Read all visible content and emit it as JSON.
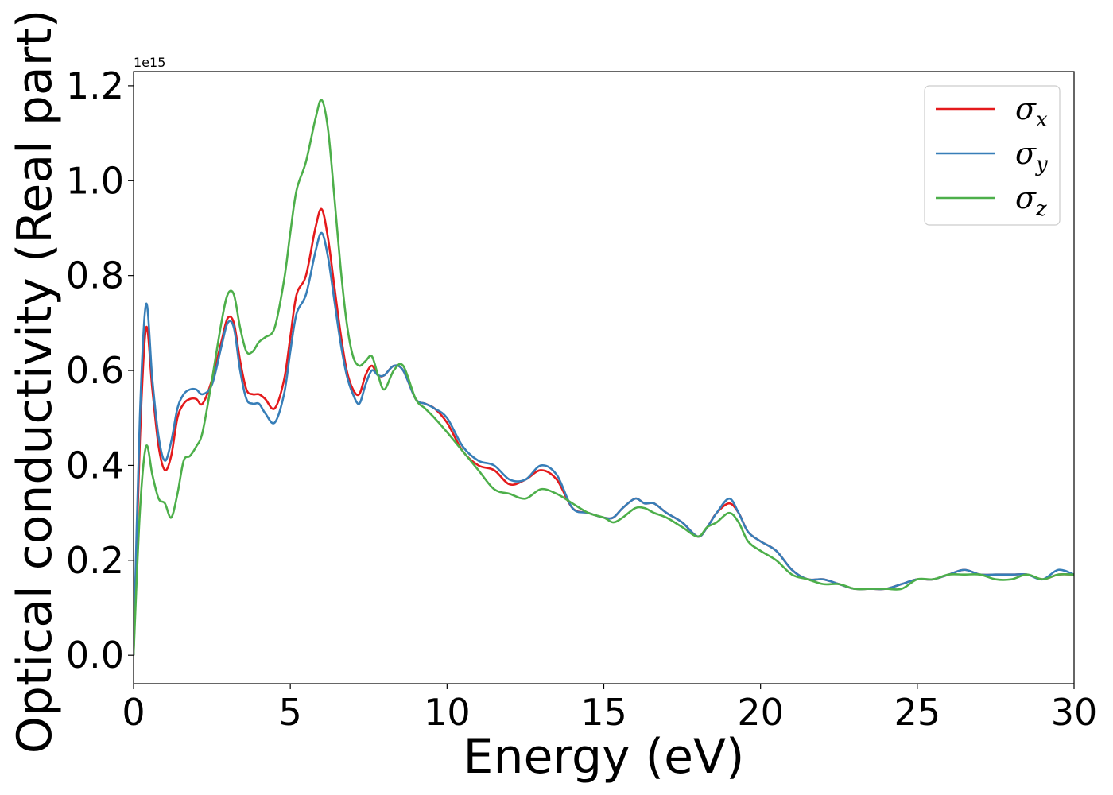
{
  "chart_data": {
    "type": "line",
    "title": "",
    "xlabel": "Energy (eV)",
    "ylabel": "Optical conductivity (Real part)",
    "y_offset_label": "1e15",
    "y_scale_factor": 1000000000000000.0,
    "xlim": [
      0,
      30
    ],
    "ylim": [
      -0.06,
      1.23
    ],
    "xticks": [
      0,
      5,
      10,
      15,
      20,
      25,
      30
    ],
    "xtick_labels": [
      "0",
      "5",
      "10",
      "15",
      "20",
      "25",
      "30"
    ],
    "yticks": [
      0.0,
      0.2,
      0.4,
      0.6,
      0.8,
      1.0,
      1.2
    ],
    "ytick_labels": [
      "0.0",
      "0.2",
      "0.4",
      "0.6",
      "0.8",
      "1.0",
      "1.2"
    ],
    "grid": false,
    "legend_position": "top-right",
    "series": [
      {
        "name": "σx",
        "symbol": "σ",
        "subscript": "x",
        "color": "#e41a1c",
        "x": [
          0,
          0.2,
          0.4,
          0.6,
          0.8,
          1.0,
          1.2,
          1.4,
          1.6,
          1.8,
          2.0,
          2.2,
          2.5,
          2.8,
          3.0,
          3.2,
          3.4,
          3.6,
          3.8,
          4.0,
          4.2,
          4.5,
          4.8,
          5.0,
          5.2,
          5.5,
          5.8,
          6.0,
          6.2,
          6.4,
          6.6,
          6.8,
          7.0,
          7.2,
          7.4,
          7.6,
          7.8,
          8.0,
          8.3,
          8.6,
          9.0,
          9.3,
          9.6,
          10.0,
          10.5,
          11.0,
          11.5,
          12.0,
          12.5,
          13.0,
          13.5,
          14.0,
          14.5,
          15.0,
          15.3,
          15.6,
          16.0,
          16.3,
          16.6,
          17.0,
          17.5,
          18.0,
          18.3,
          18.6,
          19.0,
          19.3,
          19.6,
          20.0,
          20.5,
          21.0,
          21.5,
          22.0,
          22.5,
          23.0,
          23.5,
          24.0,
          24.5,
          25.0,
          25.5,
          26.0,
          26.5,
          27.0,
          27.5,
          28.0,
          28.5,
          29.0,
          29.5,
          30.0
        ],
        "y": [
          0.0,
          0.45,
          0.69,
          0.56,
          0.44,
          0.39,
          0.42,
          0.5,
          0.53,
          0.54,
          0.54,
          0.53,
          0.58,
          0.66,
          0.71,
          0.7,
          0.62,
          0.56,
          0.55,
          0.55,
          0.54,
          0.52,
          0.58,
          0.67,
          0.76,
          0.8,
          0.9,
          0.94,
          0.88,
          0.78,
          0.68,
          0.6,
          0.56,
          0.55,
          0.59,
          0.61,
          0.59,
          0.59,
          0.61,
          0.6,
          0.54,
          0.53,
          0.52,
          0.49,
          0.43,
          0.4,
          0.39,
          0.36,
          0.37,
          0.39,
          0.37,
          0.31,
          0.3,
          0.29,
          0.29,
          0.31,
          0.33,
          0.32,
          0.32,
          0.3,
          0.28,
          0.25,
          0.27,
          0.3,
          0.32,
          0.3,
          0.26,
          0.24,
          0.22,
          0.18,
          0.16,
          0.16,
          0.15,
          0.14,
          0.14,
          0.14,
          0.15,
          0.16,
          0.16,
          0.17,
          0.18,
          0.17,
          0.17,
          0.17,
          0.17,
          0.16,
          0.17,
          0.17
        ]
      },
      {
        "name": "σy",
        "symbol": "σ",
        "subscript": "y",
        "color": "#377eb8",
        "x": [
          0,
          0.2,
          0.4,
          0.6,
          0.8,
          1.0,
          1.2,
          1.4,
          1.6,
          1.8,
          2.0,
          2.2,
          2.5,
          2.8,
          3.0,
          3.2,
          3.4,
          3.6,
          3.8,
          4.0,
          4.2,
          4.5,
          4.8,
          5.0,
          5.2,
          5.5,
          5.8,
          6.0,
          6.2,
          6.4,
          6.6,
          6.8,
          7.0,
          7.2,
          7.4,
          7.6,
          7.8,
          8.0,
          8.3,
          8.6,
          9.0,
          9.3,
          9.6,
          10.0,
          10.5,
          11.0,
          11.5,
          12.0,
          12.5,
          13.0,
          13.5,
          14.0,
          14.5,
          15.0,
          15.3,
          15.6,
          16.0,
          16.3,
          16.6,
          17.0,
          17.5,
          18.0,
          18.3,
          18.6,
          19.0,
          19.3,
          19.6,
          20.0,
          20.5,
          21.0,
          21.5,
          22.0,
          22.5,
          23.0,
          23.5,
          24.0,
          24.5,
          25.0,
          25.5,
          26.0,
          26.5,
          27.0,
          27.5,
          28.0,
          28.5,
          29.0,
          29.5,
          30.0
        ],
        "y": [
          0.0,
          0.5,
          0.74,
          0.58,
          0.46,
          0.41,
          0.45,
          0.52,
          0.55,
          0.56,
          0.56,
          0.55,
          0.57,
          0.65,
          0.7,
          0.69,
          0.6,
          0.54,
          0.53,
          0.53,
          0.51,
          0.49,
          0.55,
          0.64,
          0.72,
          0.76,
          0.85,
          0.89,
          0.84,
          0.75,
          0.66,
          0.59,
          0.55,
          0.53,
          0.57,
          0.6,
          0.59,
          0.59,
          0.61,
          0.6,
          0.54,
          0.53,
          0.52,
          0.5,
          0.44,
          0.41,
          0.4,
          0.37,
          0.37,
          0.4,
          0.38,
          0.31,
          0.3,
          0.29,
          0.29,
          0.31,
          0.33,
          0.32,
          0.32,
          0.3,
          0.28,
          0.25,
          0.27,
          0.3,
          0.33,
          0.3,
          0.26,
          0.24,
          0.22,
          0.18,
          0.16,
          0.16,
          0.15,
          0.14,
          0.14,
          0.14,
          0.15,
          0.16,
          0.16,
          0.17,
          0.18,
          0.17,
          0.17,
          0.17,
          0.17,
          0.16,
          0.18,
          0.17
        ]
      },
      {
        "name": "σz",
        "symbol": "σ",
        "subscript": "z",
        "color": "#4daf4a",
        "x": [
          0,
          0.2,
          0.4,
          0.6,
          0.8,
          1.0,
          1.2,
          1.4,
          1.6,
          1.8,
          2.0,
          2.2,
          2.5,
          2.8,
          3.0,
          3.2,
          3.4,
          3.6,
          3.8,
          4.0,
          4.2,
          4.5,
          4.8,
          5.0,
          5.2,
          5.5,
          5.8,
          6.0,
          6.2,
          6.4,
          6.6,
          6.8,
          7.0,
          7.2,
          7.4,
          7.6,
          7.8,
          8.0,
          8.3,
          8.6,
          9.0,
          9.3,
          9.6,
          10.0,
          10.5,
          11.0,
          11.5,
          12.0,
          12.5,
          13.0,
          13.5,
          14.0,
          14.5,
          15.0,
          15.3,
          15.6,
          16.0,
          16.3,
          16.6,
          17.0,
          17.5,
          18.0,
          18.3,
          18.6,
          19.0,
          19.3,
          19.6,
          20.0,
          20.5,
          21.0,
          21.5,
          22.0,
          22.5,
          23.0,
          23.5,
          24.0,
          24.5,
          25.0,
          25.5,
          26.0,
          26.5,
          27.0,
          27.5,
          28.0,
          28.5,
          29.0,
          29.5,
          30.0
        ],
        "y": [
          0.0,
          0.3,
          0.44,
          0.38,
          0.33,
          0.32,
          0.29,
          0.34,
          0.41,
          0.42,
          0.44,
          0.47,
          0.58,
          0.7,
          0.76,
          0.76,
          0.69,
          0.64,
          0.64,
          0.66,
          0.67,
          0.69,
          0.79,
          0.89,
          0.98,
          1.04,
          1.13,
          1.17,
          1.11,
          0.97,
          0.82,
          0.7,
          0.63,
          0.61,
          0.62,
          0.63,
          0.59,
          0.56,
          0.6,
          0.61,
          0.54,
          0.52,
          0.5,
          0.47,
          0.43,
          0.39,
          0.35,
          0.34,
          0.33,
          0.35,
          0.34,
          0.32,
          0.3,
          0.29,
          0.28,
          0.29,
          0.31,
          0.31,
          0.3,
          0.29,
          0.27,
          0.25,
          0.27,
          0.28,
          0.3,
          0.28,
          0.24,
          0.22,
          0.2,
          0.17,
          0.16,
          0.15,
          0.15,
          0.14,
          0.14,
          0.14,
          0.14,
          0.16,
          0.16,
          0.17,
          0.17,
          0.17,
          0.16,
          0.16,
          0.17,
          0.16,
          0.17,
          0.17
        ]
      }
    ]
  }
}
